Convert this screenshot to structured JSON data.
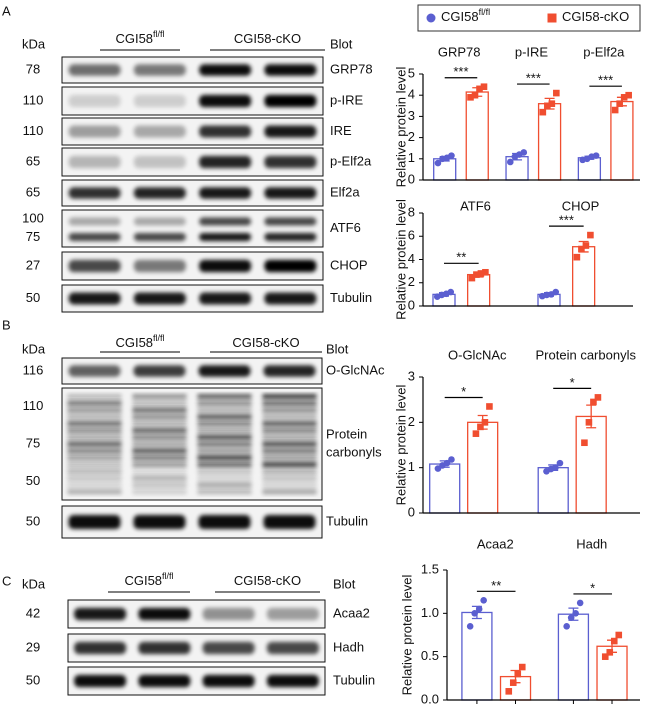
{
  "blots": [
    {
      "panel": "A",
      "kda_header": "kDa",
      "groups": [
        {
          "name": "CGI58",
          "sup": "fl/fl"
        },
        {
          "name": "CGI58-cKO"
        }
      ],
      "blot_header": "Blot",
      "rows": [
        {
          "kda": [
            "78"
          ],
          "label": [
            "GRP78"
          ]
        },
        {
          "kda": [
            "110"
          ],
          "label": [
            "p-IRE"
          ]
        },
        {
          "kda": [
            "110"
          ],
          "label": [
            "IRE"
          ]
        },
        {
          "kda": [
            "65"
          ],
          "label": [
            "p-Elf2a"
          ]
        },
        {
          "kda": [
            "65"
          ],
          "label": [
            "Elf2a"
          ]
        },
        {
          "kda": [
            "100",
            "75"
          ],
          "label": [
            "ATF6"
          ]
        },
        {
          "kda": [
            "27"
          ],
          "label": [
            "CHOP"
          ]
        },
        {
          "kda": [
            "50"
          ],
          "label": [
            "Tubulin"
          ]
        }
      ]
    },
    {
      "panel": "B",
      "kda_header": "kDa",
      "groups": [
        {
          "name": "CGI58",
          "sup": "fl/fl"
        },
        {
          "name": "CGI58-cKO"
        }
      ],
      "blot_header": "Blot",
      "rows": [
        {
          "kda": [
            "116"
          ],
          "label": [
            "O-GlcNAc"
          ]
        },
        {
          "kda": [
            "110",
            "75",
            "50"
          ],
          "label": [
            "Protein",
            "carbonyls"
          ]
        },
        {
          "kda": [
            "50"
          ],
          "label": [
            "Tubulin"
          ]
        }
      ]
    },
    {
      "panel": "C",
      "kda_header": "kDa",
      "groups": [
        {
          "name": "CGI58",
          "sup": "fl/fl"
        },
        {
          "name": "CGI58-cKO"
        }
      ],
      "blot_header": "Blot",
      "rows": [
        {
          "kda": [
            "42"
          ],
          "label": [
            "Acaa2"
          ]
        },
        {
          "kda": [
            "29"
          ],
          "label": [
            "Hadh"
          ]
        },
        {
          "kda": [
            "50"
          ],
          "label": [
            "Tubulin"
          ]
        }
      ]
    }
  ],
  "chart_data": [
    {
      "type": "bar",
      "categories": [
        "GRP78",
        "p-IRE",
        "p-Elf2a"
      ],
      "y_label": "Relative protein level",
      "ylim": [
        0,
        5
      ],
      "yticks": [
        0,
        1,
        2,
        3,
        4,
        5
      ],
      "series": [
        {
          "name": "CGI58",
          "name_sup": "fl/fl",
          "color": "#5b5fd0",
          "values": [
            1.0,
            1.1,
            1.05
          ],
          "errors": [
            0.1,
            0.15,
            0.07
          ],
          "points": [
            [
              0.8,
              1.0,
              1.05,
              1.15
            ],
            [
              0.85,
              1.1,
              1.2,
              1.3
            ],
            [
              0.95,
              1.0,
              1.1,
              1.15
            ]
          ]
        },
        {
          "name": "CGI58-cKO",
          "color": "#f04e30",
          "values": [
            4.15,
            3.6,
            3.7
          ],
          "errors": [
            0.2,
            0.25,
            0.2
          ],
          "points": [
            [
              3.9,
              4.0,
              4.3,
              4.4
            ],
            [
              3.2,
              3.5,
              3.6,
              4.1
            ],
            [
              3.3,
              3.6,
              3.9,
              4.0
            ]
          ]
        }
      ],
      "significance": [
        "***",
        "***",
        "***"
      ]
    },
    {
      "type": "bar",
      "categories": [
        "ATF6",
        "CHOP"
      ],
      "y_label": "Relative protein level",
      "ylim": [
        0,
        8
      ],
      "yticks": [
        0,
        2,
        4,
        6,
        8
      ],
      "series": [
        {
          "color": "#5b5fd0",
          "values": [
            1.0,
            1.0
          ],
          "errors": [
            0.15,
            0.15
          ],
          "points": [
            [
              0.8,
              0.95,
              1.05,
              1.2
            ],
            [
              0.85,
              0.95,
              1.0,
              1.2
            ]
          ]
        },
        {
          "color": "#f04e30",
          "values": [
            2.7,
            5.1
          ],
          "errors": [
            0.2,
            0.45
          ],
          "points": [
            [
              2.4,
              2.7,
              2.8,
              2.9
            ],
            [
              4.2,
              4.9,
              5.2,
              6.1
            ]
          ]
        }
      ],
      "significance": [
        "**",
        "***"
      ]
    },
    {
      "type": "bar",
      "categories": [
        "O-GlcNAc",
        "Protein carbonyls"
      ],
      "y_label": "Relative protein level",
      "ylim": [
        0,
        3
      ],
      "yticks": [
        0,
        1,
        2,
        3
      ],
      "series": [
        {
          "color": "#5b5fd0",
          "values": [
            1.08,
            1.0
          ],
          "errors": [
            0.07,
            0.06
          ],
          "points": [
            [
              0.98,
              1.05,
              1.1,
              1.18
            ],
            [
              0.92,
              0.97,
              1.0,
              1.1
            ]
          ]
        },
        {
          "color": "#f04e30",
          "values": [
            2.0,
            2.13
          ],
          "errors": [
            0.15,
            0.25
          ],
          "points": [
            [
              1.75,
              1.9,
              2.0,
              2.35
            ],
            [
              1.55,
              2.0,
              2.45,
              2.55
            ]
          ]
        }
      ],
      "significance": [
        "*",
        "*"
      ]
    },
    {
      "type": "bar",
      "categories": [
        "Acaa2",
        "Hadh"
      ],
      "y_label": "Relative protein level",
      "ylim": [
        0,
        1.5
      ],
      "yticks": [
        {
          "value": 0,
          "label": "0.0"
        },
        {
          "value": 0.5,
          "label": "0.5"
        },
        {
          "value": 1,
          "label": "1.0"
        },
        {
          "value": 1.5,
          "label": "1.5"
        }
      ],
      "series": [
        {
          "color": "#5b5fd0",
          "values": [
            1.01,
            0.99
          ],
          "errors": [
            0.07,
            0.07
          ],
          "points": [
            [
              0.85,
              1.0,
              1.05,
              1.15
            ],
            [
              0.85,
              0.95,
              1.0,
              1.12
            ]
          ]
        },
        {
          "color": "#f04e30",
          "values": [
            0.27,
            0.62
          ],
          "errors": [
            0.07,
            0.07
          ],
          "points": [
            [
              0.1,
              0.2,
              0.3,
              0.38
            ],
            [
              0.5,
              0.55,
              0.68,
              0.75
            ]
          ]
        }
      ],
      "significance": [
        "**",
        "*"
      ]
    }
  ]
}
